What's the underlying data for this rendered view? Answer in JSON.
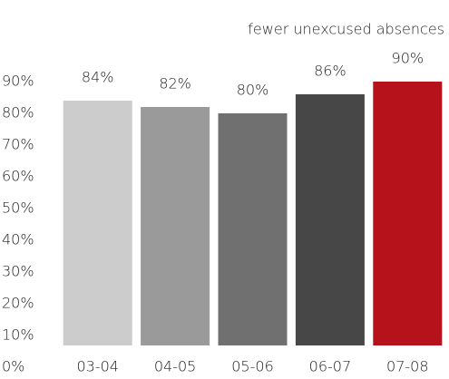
{
  "chart_data": {
    "type": "bar",
    "title": "fewer unexcused absences",
    "categories": [
      "03-04",
      "04-05",
      "05-06",
      "06-07",
      "07-08"
    ],
    "values": [
      84,
      82,
      80,
      86,
      90
    ],
    "value_labels": [
      "84%",
      "82%",
      "80%",
      "86%",
      "90%"
    ],
    "colors": [
      "#cccccc",
      "#9a9a9a",
      "#707070",
      "#474747",
      "#b5121b"
    ],
    "ylim": [
      0,
      90
    ],
    "yticks": [
      {
        "value": 0,
        "label": "0%"
      },
      {
        "value": 10,
        "label": "10%"
      },
      {
        "value": 20,
        "label": "20%"
      },
      {
        "value": 30,
        "label": "30%"
      },
      {
        "value": 40,
        "label": "40%"
      },
      {
        "value": 50,
        "label": "50%"
      },
      {
        "value": 60,
        "label": "60%"
      },
      {
        "value": 70,
        "label": "70%"
      },
      {
        "value": 80,
        "label": "80%"
      },
      {
        "value": 90,
        "label": "90%"
      }
    ],
    "grid": false
  }
}
